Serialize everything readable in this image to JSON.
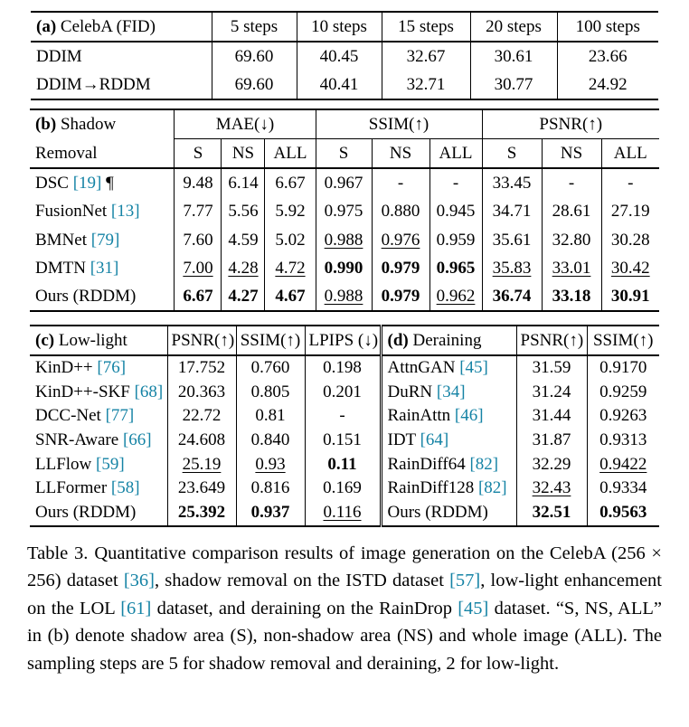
{
  "colors": {
    "background": "#ffffff",
    "text": "#000000",
    "cite": "#1583A5",
    "rule": "#000000"
  },
  "tables": {
    "a": {
      "title": "(a) CelebA (FID)",
      "header": [
        [
          {
            "parts": [
              {
                "t": "(a)",
                "cls": "bold"
              },
              {
                "t": " CelebA (FID)"
              }
            ],
            "cls": "method"
          },
          {
            "t": "5 steps"
          },
          {
            "t": "10 steps"
          },
          {
            "t": "15 steps"
          },
          {
            "t": "20 steps"
          },
          {
            "t": "100 steps"
          }
        ]
      ],
      "rows": [
        [
          {
            "t": "DDIM",
            "cls": "method"
          },
          {
            "t": "69.60"
          },
          {
            "t": "40.45"
          },
          {
            "t": "32.67"
          },
          {
            "t": "30.61"
          },
          {
            "t": "23.66"
          }
        ],
        [
          {
            "t": "DDIM→RDDM",
            "cls": "method"
          },
          {
            "t": "69.60"
          },
          {
            "t": "40.41"
          },
          {
            "t": "32.71"
          },
          {
            "t": "30.77"
          },
          {
            "t": "24.92"
          }
        ]
      ]
    },
    "b": {
      "title": "(b) Shadow Removal",
      "header": [
        [
          {
            "parts": [
              {
                "t": "(b)",
                "cls": "bold"
              },
              {
                "t": " Shadow"
              }
            ],
            "cls": "method"
          },
          {
            "t": "MAE(↓)",
            "colspan": 3,
            "cls": "cline"
          },
          {
            "t": "SSIM(↑)",
            "colspan": 3,
            "cls": "cline"
          },
          {
            "t": "PSNR(↑)",
            "colspan": 3,
            "cls": "cline"
          }
        ],
        [
          {
            "t": "Removal",
            "cls": "method"
          },
          {
            "t": "S"
          },
          {
            "t": "NS"
          },
          {
            "t": "ALL"
          },
          {
            "t": "S"
          },
          {
            "t": "NS"
          },
          {
            "t": "ALL"
          },
          {
            "t": "S"
          },
          {
            "t": "NS"
          },
          {
            "t": "ALL"
          }
        ]
      ],
      "rows": [
        [
          {
            "parts": [
              {
                "t": "DSC "
              },
              {
                "t": "[19]",
                "cls": "cite"
              },
              {
                "t": " ¶"
              }
            ],
            "cls": "method"
          },
          {
            "t": "9.48"
          },
          {
            "t": "6.14"
          },
          {
            "t": "6.67"
          },
          {
            "t": "0.967"
          },
          {
            "t": "-"
          },
          {
            "t": "-"
          },
          {
            "t": "33.45"
          },
          {
            "t": "-"
          },
          {
            "t": "-"
          }
        ],
        [
          {
            "parts": [
              {
                "t": "FusionNet "
              },
              {
                "t": "[13]",
                "cls": "cite"
              }
            ],
            "cls": "method"
          },
          {
            "t": "7.77"
          },
          {
            "t": "5.56"
          },
          {
            "t": "5.92"
          },
          {
            "t": "0.975"
          },
          {
            "t": "0.880"
          },
          {
            "t": "0.945"
          },
          {
            "t": "34.71"
          },
          {
            "t": "28.61"
          },
          {
            "t": "27.19"
          }
        ],
        [
          {
            "parts": [
              {
                "t": "BMNet "
              },
              {
                "t": "[79]",
                "cls": "cite"
              }
            ],
            "cls": "method"
          },
          {
            "t": "7.60"
          },
          {
            "t": "4.59"
          },
          {
            "t": "5.02"
          },
          {
            "t": "0.988",
            "u": true
          },
          {
            "t": "0.976",
            "u": true
          },
          {
            "t": "0.959"
          },
          {
            "t": "35.61"
          },
          {
            "t": "32.80"
          },
          {
            "t": "30.28"
          }
        ],
        [
          {
            "parts": [
              {
                "t": "DMTN "
              },
              {
                "t": "[31]",
                "cls": "cite"
              }
            ],
            "cls": "method"
          },
          {
            "t": "7.00",
            "u": true
          },
          {
            "t": "4.28",
            "u": true
          },
          {
            "t": "4.72",
            "u": true
          },
          {
            "t": "0.990",
            "b": true
          },
          {
            "t": "0.979",
            "b": true
          },
          {
            "t": "0.965",
            "b": true
          },
          {
            "t": "35.83",
            "u": true
          },
          {
            "t": "33.01",
            "u": true
          },
          {
            "t": "30.42",
            "u": true
          }
        ],
        [
          {
            "t": "Ours (RDDM)",
            "cls": "method"
          },
          {
            "t": "6.67",
            "b": true
          },
          {
            "t": "4.27",
            "b": true
          },
          {
            "t": "4.67",
            "b": true
          },
          {
            "t": "0.988",
            "u": true
          },
          {
            "t": "0.979",
            "b": true
          },
          {
            "t": "0.962",
            "u": true
          },
          {
            "t": "36.74",
            "b": true
          },
          {
            "t": "33.18",
            "b": true
          },
          {
            "t": "30.91",
            "b": true
          }
        ]
      ]
    },
    "cd": {
      "title": "(c) Low-light / (d) Deraining",
      "header": [
        [
          {
            "parts": [
              {
                "t": "(c)",
                "cls": "bold"
              },
              {
                "t": " Low-light"
              }
            ],
            "cls": "method"
          },
          {
            "t": "PSNR(↑)"
          },
          {
            "t": "SSIM(↑)"
          },
          {
            "t": "LPIPS (↓)"
          },
          {
            "parts": [
              {
                "t": "(d)",
                "cls": "bold"
              },
              {
                "t": " Deraining"
              }
            ],
            "cls": "method dbl"
          },
          {
            "t": "PSNR(↑)"
          },
          {
            "t": "SSIM(↑)"
          }
        ]
      ],
      "rows": [
        [
          {
            "parts": [
              {
                "t": "KinD++ "
              },
              {
                "t": "[76]",
                "cls": "cite"
              }
            ],
            "cls": "method"
          },
          {
            "t": "17.752"
          },
          {
            "t": "0.760"
          },
          {
            "t": "0.198"
          },
          {
            "parts": [
              {
                "t": "AttnGAN "
              },
              {
                "t": "[45]",
                "cls": "cite"
              }
            ],
            "cls": "method dbl"
          },
          {
            "t": "31.59"
          },
          {
            "t": "0.9170"
          }
        ],
        [
          {
            "parts": [
              {
                "t": "KinD++-SKF "
              },
              {
                "t": "[68]",
                "cls": "cite"
              }
            ],
            "cls": "method"
          },
          {
            "t": "20.363"
          },
          {
            "t": "0.805"
          },
          {
            "t": "0.201"
          },
          {
            "parts": [
              {
                "t": "DuRN "
              },
              {
                "t": "[34]",
                "cls": "cite"
              }
            ],
            "cls": "method dbl"
          },
          {
            "t": "31.24"
          },
          {
            "t": "0.9259"
          }
        ],
        [
          {
            "parts": [
              {
                "t": "DCC-Net "
              },
              {
                "t": "[77]",
                "cls": "cite"
              }
            ],
            "cls": "method"
          },
          {
            "t": "22.72"
          },
          {
            "t": "0.81"
          },
          {
            "t": "-"
          },
          {
            "parts": [
              {
                "t": "RainAttn "
              },
              {
                "t": "[46]",
                "cls": "cite"
              }
            ],
            "cls": "method dbl"
          },
          {
            "t": "31.44"
          },
          {
            "t": "0.9263"
          }
        ],
        [
          {
            "parts": [
              {
                "t": "SNR-Aware "
              },
              {
                "t": "[66]",
                "cls": "cite"
              }
            ],
            "cls": "method"
          },
          {
            "t": "24.608"
          },
          {
            "t": "0.840"
          },
          {
            "t": "0.151"
          },
          {
            "parts": [
              {
                "t": "IDT "
              },
              {
                "t": "[64]",
                "cls": "cite"
              }
            ],
            "cls": "method dbl"
          },
          {
            "t": "31.87"
          },
          {
            "t": "0.9313"
          }
        ],
        [
          {
            "parts": [
              {
                "t": "LLFlow "
              },
              {
                "t": "[59]",
                "cls": "cite"
              }
            ],
            "cls": "method"
          },
          {
            "t": "25.19",
            "u": true
          },
          {
            "t": "0.93",
            "u": true
          },
          {
            "t": "0.11",
            "b": true
          },
          {
            "parts": [
              {
                "t": "RainDiff64 "
              },
              {
                "t": "[82]",
                "cls": "cite"
              }
            ],
            "cls": "method dbl"
          },
          {
            "t": "32.29"
          },
          {
            "t": "0.9422",
            "u": true
          }
        ],
        [
          {
            "parts": [
              {
                "t": "LLFormer "
              },
              {
                "t": "[58]",
                "cls": "cite"
              }
            ],
            "cls": "method"
          },
          {
            "t": "23.649"
          },
          {
            "t": "0.816"
          },
          {
            "t": "0.169"
          },
          {
            "parts": [
              {
                "t": "RainDiff128 "
              },
              {
                "t": "[82]",
                "cls": "cite"
              }
            ],
            "cls": "method dbl"
          },
          {
            "t": "32.43",
            "u": true
          },
          {
            "t": "0.9334"
          }
        ],
        [
          {
            "t": "Ours (RDDM)",
            "cls": "method"
          },
          {
            "t": "25.392",
            "b": true
          },
          {
            "t": "0.937",
            "b": true
          },
          {
            "t": "0.116",
            "u": true
          },
          {
            "t": "Ours (RDDM)",
            "cls": "method dbl"
          },
          {
            "t": "32.51",
            "b": true
          },
          {
            "t": "0.9563",
            "b": true
          }
        ]
      ]
    }
  },
  "caption": {
    "parts": [
      {
        "t": "Table 3.",
        "cls": "caplabel"
      },
      {
        "t": "Quantitative comparison results of image generation on the CelebA (256 × 256) dataset "
      },
      {
        "t": "[36]",
        "cls": "cite"
      },
      {
        "t": ", shadow removal on the ISTD dataset "
      },
      {
        "t": "[57]",
        "cls": "cite"
      },
      {
        "t": ", low-light enhancement on the LOL "
      },
      {
        "t": "[61]",
        "cls": "cite"
      },
      {
        "t": " dataset, and deraining on the RainDrop "
      },
      {
        "t": "[45]",
        "cls": "cite"
      },
      {
        "t": " dataset. “S, NS, ALL” in (b) denote shadow area (S), non-shadow area (NS) and whole image (ALL). The sampling steps are 5 for shadow removal and deraining, 2 for low-light."
      }
    ]
  }
}
